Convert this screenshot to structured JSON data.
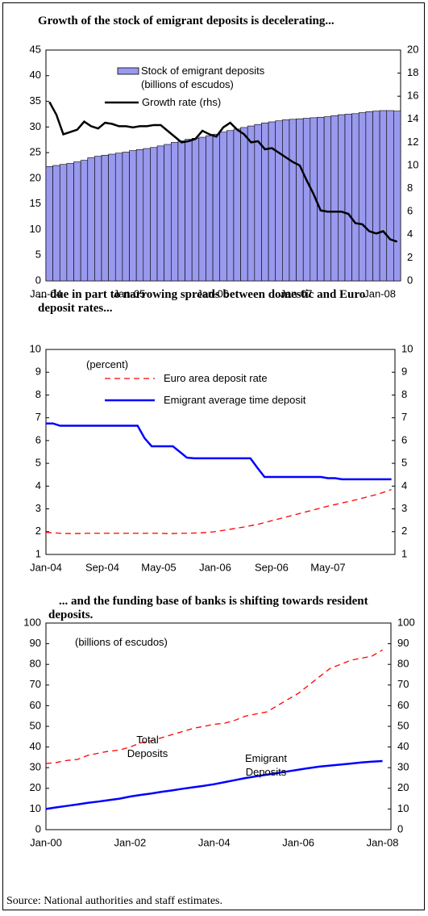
{
  "chart_data": [
    {
      "type": "combo",
      "title": "Growth of the stock of emigrant deposits is decelerating...",
      "categories": [
        "Jan-04",
        null,
        null,
        null,
        null,
        null,
        null,
        null,
        null,
        null,
        null,
        null,
        "Jan-05",
        null,
        null,
        null,
        null,
        null,
        null,
        null,
        null,
        null,
        null,
        null,
        "Jan-06",
        null,
        null,
        null,
        null,
        null,
        null,
        null,
        null,
        null,
        null,
        null,
        "Jan-07",
        null,
        null,
        null,
        null,
        null,
        null,
        null,
        null,
        null,
        null,
        null,
        "Jan-08",
        null,
        null
      ],
      "series": [
        {
          "name": "Stock of emigrant deposits (billions of escudos)",
          "type": "bar",
          "color": "#9999ee",
          "values": [
            22.3,
            22.5,
            22.7,
            22.9,
            23.2,
            23.5,
            24.0,
            24.3,
            24.5,
            24.7,
            24.9,
            25.1,
            25.4,
            25.6,
            25.8,
            26.0,
            26.3,
            26.6,
            27.0,
            27.3,
            27.6,
            27.8,
            28.0,
            28.3,
            28.6,
            29.0,
            29.3,
            29.6,
            29.9,
            30.2,
            30.5,
            30.8,
            31.0,
            31.2,
            31.4,
            31.5,
            31.6,
            31.7,
            31.8,
            31.9,
            32.0,
            32.2,
            32.4,
            32.5,
            32.6,
            32.8,
            33.0,
            33.1,
            33.2,
            33.2,
            33.1
          ]
        },
        {
          "name": "Growth rate (rhs)",
          "type": "line",
          "color": "#000000",
          "axis": "y2",
          "values": [
            15.5,
            14.4,
            12.7,
            12.9,
            13.1,
            13.8,
            13.4,
            13.2,
            13.7,
            13.6,
            13.4,
            13.4,
            13.3,
            13.4,
            13.4,
            13.5,
            13.5,
            13.0,
            12.5,
            12.0,
            12.1,
            12.3,
            13.0,
            12.7,
            12.5,
            13.3,
            13.7,
            13.1,
            12.7,
            12.0,
            12.1,
            11.4,
            11.5,
            11.1,
            10.7,
            10.3,
            10.0,
            8.7,
            7.5,
            6.1,
            6.0,
            6.0,
            6.0,
            5.8,
            5.0,
            4.9,
            4.3,
            4.1,
            4.3,
            3.6,
            3.4
          ]
        }
      ],
      "ylim": [
        0,
        45
      ],
      "yticks": [
        0,
        5,
        10,
        15,
        20,
        25,
        30,
        35,
        40,
        45
      ],
      "y2lim": [
        0,
        20
      ],
      "y2ticks": [
        0,
        2,
        4,
        6,
        8,
        10,
        12,
        14,
        16,
        18,
        20
      ],
      "grid": false
    },
    {
      "type": "line",
      "title": "... due in part to narrowing spreads between domestic and Euro deposit rates...",
      "annotations": [
        "(percent)"
      ],
      "categories": [
        "Jan-04",
        null,
        null,
        null,
        null,
        null,
        null,
        null,
        "Sep-04",
        null,
        null,
        null,
        null,
        null,
        null,
        null,
        "May-05",
        null,
        null,
        null,
        null,
        null,
        null,
        null,
        "Jan-06",
        null,
        null,
        null,
        null,
        null,
        null,
        null,
        "Sep-06",
        null,
        null,
        null,
        null,
        null,
        null,
        null,
        "May-07",
        null,
        null,
        null,
        null,
        null,
        null,
        null,
        null,
        null
      ],
      "series": [
        {
          "name": "Euro area deposit rate",
          "color": "#ff0000",
          "dashed": true,
          "values": [
            1.97,
            1.95,
            1.93,
            1.92,
            1.92,
            1.92,
            1.93,
            1.93,
            1.93,
            1.93,
            1.93,
            1.93,
            1.93,
            1.93,
            1.93,
            1.93,
            1.93,
            1.92,
            1.92,
            1.93,
            1.93,
            1.94,
            1.95,
            1.97,
            2.0,
            2.05,
            2.1,
            2.15,
            2.2,
            2.26,
            2.32,
            2.4,
            2.48,
            2.56,
            2.64,
            2.72,
            2.8,
            2.88,
            2.96,
            3.04,
            3.12,
            3.19,
            3.26,
            3.33,
            3.4,
            3.48,
            3.56,
            3.64,
            3.74,
            3.85
          ]
        },
        {
          "name": "Emigrant average time deposit",
          "color": "#0000ff",
          "dashed": false,
          "values": [
            6.75,
            6.75,
            6.65,
            6.65,
            6.65,
            6.65,
            6.65,
            6.65,
            6.65,
            6.65,
            6.65,
            6.65,
            6.65,
            6.65,
            6.1,
            5.75,
            5.75,
            5.75,
            5.75,
            5.5,
            5.25,
            5.22,
            5.22,
            5.22,
            5.22,
            5.22,
            5.22,
            5.22,
            5.22,
            5.22,
            4.8,
            4.4,
            4.4,
            4.4,
            4.4,
            4.4,
            4.4,
            4.4,
            4.4,
            4.4,
            4.35,
            4.35,
            4.3,
            4.3,
            4.3,
            4.3,
            4.3,
            4.3,
            4.3,
            4.3
          ]
        }
      ],
      "ylim": [
        1,
        10
      ],
      "yticks": [
        1,
        2,
        3,
        4,
        5,
        6,
        7,
        8,
        9,
        10
      ],
      "y2lim": [
        1,
        10
      ],
      "y2ticks": [
        1,
        2,
        3,
        4,
        5,
        6,
        7,
        8,
        9,
        10
      ],
      "grid": false
    },
    {
      "type": "line",
      "title": "... and the funding base of banks is shifting towards resident deposits.",
      "annotations": [
        "(billions of escudos)"
      ],
      "categories": [
        "Jan-00",
        null,
        null,
        null,
        null,
        null,
        null,
        null,
        "Jan-02",
        null,
        null,
        null,
        null,
        null,
        null,
        null,
        "Jan-04",
        null,
        null,
        null,
        null,
        null,
        null,
        null,
        "Jan-06",
        null,
        null,
        null,
        null,
        null,
        null,
        null,
        "Jan-08"
      ],
      "series": [
        {
          "name": "Total Deposits",
          "color": "#ff0000",
          "dashed": true,
          "values": [
            32,
            32.5,
            33.5,
            34,
            36,
            37,
            38,
            38.5,
            40,
            42,
            43,
            44.5,
            46,
            47.5,
            49,
            50,
            51,
            51.5,
            53,
            55,
            56,
            57,
            60,
            63,
            66,
            70,
            74,
            78,
            80,
            82,
            83,
            84,
            87
          ]
        },
        {
          "name": "Emigrant Deposits",
          "color": "#0000ff",
          "dashed": false,
          "values": [
            10,
            10.8,
            11.5,
            12.2,
            13,
            13.6,
            14.3,
            15,
            16,
            16.8,
            17.5,
            18.3,
            19,
            19.8,
            20.5,
            21.2,
            22,
            23,
            24,
            25,
            25.8,
            26.6,
            27.4,
            28.2,
            29,
            29.8,
            30.5,
            31,
            31.5,
            32,
            32.5,
            32.9,
            33.2
          ]
        }
      ],
      "ylim": [
        0,
        100
      ],
      "yticks": [
        0,
        10,
        20,
        30,
        40,
        50,
        60,
        70,
        80,
        90,
        100
      ],
      "y2lim": [
        0,
        100
      ],
      "y2ticks": [
        0,
        10,
        20,
        30,
        40,
        50,
        60,
        70,
        80,
        90,
        100
      ],
      "grid": false
    }
  ],
  "source": "Source: National authorities and staff estimates."
}
